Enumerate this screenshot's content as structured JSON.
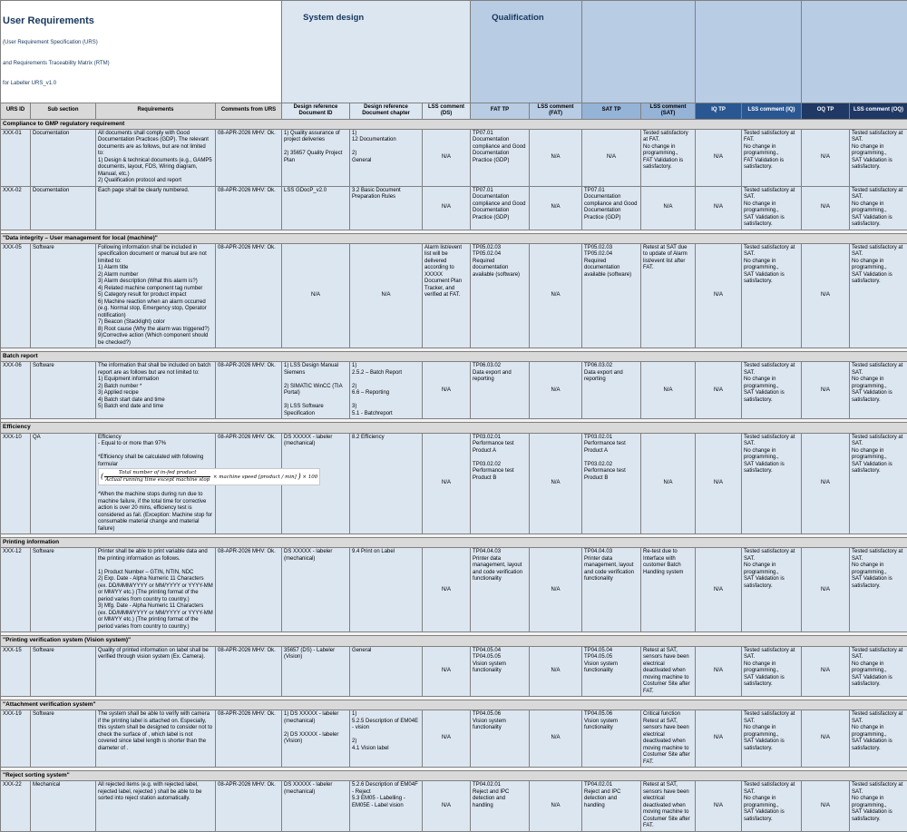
{
  "title": {
    "line1": "User Requirements",
    "line2": "(User Requirement Specification (URS)",
    "line3": "and Requirements Traceability Matrix (RTM)",
    "line4": "for Labeller URS_v1.0"
  },
  "bands": {
    "system_design": "System design",
    "qualification": "Qualification"
  },
  "colors": {
    "header_gray": "#d9d9d9",
    "system_design_blue": "#dce6f1",
    "qualification_blue": "#b8cce4",
    "sat_blue": "#95b3d7",
    "iq_navy": "#2a5792",
    "oq_navy": "#1f3864",
    "cell_bg": "#dce6f1",
    "title_navy": "#17375d"
  },
  "columns": [
    {
      "key": "urs-id",
      "field": "id",
      "label": "URS ID",
      "group": "urs"
    },
    {
      "key": "sub-section",
      "field": "sub",
      "label": "Sub section",
      "group": "urs"
    },
    {
      "key": "requirements",
      "field": "req",
      "label": "Requirements",
      "group": "urs"
    },
    {
      "key": "comments-from-urs",
      "field": "comments",
      "label": "Comments from URS",
      "group": "urs"
    },
    {
      "key": "design-doc-id",
      "field": "ds_id",
      "label": "Design reference\nDocument ID",
      "group": "ds"
    },
    {
      "key": "design-doc-chapter",
      "field": "ds_ch",
      "label": "Design reference\nDocument chapter",
      "group": "ds"
    },
    {
      "key": "lss-comment-ds",
      "field": "lss_ds",
      "label": "LSS comment (DS)",
      "group": "ds"
    },
    {
      "key": "fat-tp",
      "field": "fat",
      "label": "FAT TP",
      "group": "fat"
    },
    {
      "key": "lss-comment-fat",
      "field": "lss_fat",
      "label": "LSS comment (FAT)",
      "group": "fat"
    },
    {
      "key": "sat-tp",
      "field": "sat",
      "label": "SAT TP",
      "group": "sat"
    },
    {
      "key": "lss-comment-sat",
      "field": "lss_sat",
      "label": "LSS comment (SAT)",
      "group": "sat"
    },
    {
      "key": "iq-tp",
      "field": "iq",
      "label": "IQ TP",
      "group": "iq"
    },
    {
      "key": "lss-comment-iq",
      "field": "lss_iq",
      "label": "LSS comment (IQ)",
      "group": "iq"
    },
    {
      "key": "oq-tp",
      "field": "oq",
      "label": "OQ TP",
      "group": "oq"
    },
    {
      "key": "lss-comment-oq",
      "field": "lss_oq",
      "label": "LSS comment (OQ)",
      "group": "oq"
    }
  ],
  "formula": {
    "numerator": "Total number of in-fed product",
    "denominator": "Actual running time except machine stop",
    "mid": "× machine speed [product / min]",
    "tail": "× 100"
  },
  "sections": [
    {
      "header": "Compliance to GMP regulatory requirement",
      "rows": [
        {
          "id": "XXX-01",
          "sub": "Documentation",
          "req": "All documents shall comply with Good Documentation Practices (GDP). The relevant documents are as follows, but are not limited to:\n1) Design & technical documents (e.g., GAMP5 documents, layout, FDS, Wiring diagram, Manual, etc.)\n2) Qualification protocol and report",
          "comments": "08-APR-2026 MHV: Ok.",
          "ds_id": "1) Quality assurance of project deliveries\n\n2) 35657 Quality Project Plan",
          "ds_ch": "1)\n12 Documentation\n\n2)\nGeneral",
          "lss_ds": "N/A",
          "fat": "TP07.01\nDocumentation compliance and Good Documentation Practice (GDP)",
          "lss_fat": "N/A",
          "sat": "N/A",
          "lss_sat": "Tested satisfactory at FAT.\nNo change in programming.,\nFAT Validation is satisfactory.",
          "iq": "N/A",
          "lss_iq": "Tested satisfactory at FAT.\nNo change in programming.,\nFAT Validation is satisfactory.",
          "oq": "N/A",
          "lss_oq": "Tested satisfactory at SAT.\nNo change in programming.,\nSAT Validation is satisfactory."
        },
        {
          "id": "XXX-02",
          "sub": "Documentation",
          "req": "Each page shall be clearly numbered.",
          "comments": "08-APR-2026 MHV: Ok.",
          "ds_id": "LSS GDocP_v2.0",
          "ds_ch": "3.2 Basic Document Preparation Rules",
          "lss_ds": "N/A",
          "fat": "TP07.01\nDocumentation compliance and Good Documentation Practice (GDP)",
          "lss_fat": "N/A",
          "sat": "TP07.01\nDocumentation compliance and Good Documentation Practice (GDP)",
          "lss_sat": "N/A",
          "iq": "N/A",
          "lss_iq": "Tested satisfactory at SAT.\nNo change in programming.,\nSAT Validation is satisfactory.",
          "oq": "N/A",
          "lss_oq": "Tested satisfactory at SAT.\nNo change in programming.,\nSAT Validation is satisfactory."
        }
      ]
    },
    {
      "header": "\"Data integrity – User management for local (machine)\"",
      "rows": [
        {
          "id": "XXX-05",
          "sub": "Software",
          "req": "Following information shall be included in specification document or manual but are not limited to:\n1) Alarm title\n2) Alarm number\n3) Alarm description (What this alarm is?)\n4) Related machine component tag number\n5) Category result for product impact\n6) Machine reaction when an alarm occurred (e.g. Normal stop, Emergency stop, Operator notification)\n7) Beacon (Stacklight) color\n8) Root cause (Why the alarm was triggered?)\n9)Corrective action (Which component should be checked?)",
          "comments": "08-APR-2026 MHV: Ok.",
          "ds_id": "N/A",
          "ds_ch": "N/A",
          "lss_ds": "Alarm list/event list will be delivered according to XXXXX Document Plan Tracker, and verified at FAT.",
          "fat": "TP05.02.03\nTP05.02.04\nRequired documentation available (software)",
          "lss_fat": "N/A",
          "sat": "TP05.02.03\nTP05.02.04\nRequired documentation available (software)",
          "lss_sat": "Retest at SAT due to update of Alarm list/event list after FAT.",
          "iq": "N/A",
          "lss_iq": "Tested satisfactory at SAT.\nNo change in programming.,\nSAT Validation is satisfactory.",
          "oq": "N/A",
          "lss_oq": "Tested satisfactory at SAT.\nNo change in programming.,\nSAT Validation is satisfactory."
        }
      ]
    },
    {
      "header": "Batch report",
      "rows": [
        {
          "id": "XXX-06",
          "sub": "Software",
          "req": "The information that shall be included on batch report are as follows but are not limited to:\n1) Equipment information\n2) Batch number *\n3) Applied recipe\n4) Batch start date and time\n5) Batch end date and time",
          "comments": "08-APR-2026 MHV: Ok.",
          "ds_id": "1) LSS Design Manual Siemens\n\n2) SIMATIC WinCC (TIA Portal)\n\n3) LSS Software Specification",
          "ds_ch": "1)\n2.5.2 – Batch Report\n\n2)\n6.6 – Reporting\n\n3)\n5.1 - Batchreport",
          "lss_ds": "N/A",
          "fat": "TP06.03.02\nData export and reporting",
          "lss_fat": "N/A",
          "sat": "TP06.03.02\nData export and reporting",
          "lss_sat": "N/A",
          "iq": "N/A",
          "lss_iq": "Tested satisfactory at SAT.\nNo change in programming.,\nSAT Validation is satisfactory.",
          "oq": "N/A",
          "lss_oq": "Tested satisfactory at SAT.\nNo change in programming.,\nSAT Validation is satisfactory."
        }
      ]
    },
    {
      "header": "Efficiency",
      "rows": [
        {
          "id": "XXX-10",
          "sub": "QA",
          "req": "Efficiency\n- Equal to or more than 97%\n\n*Efficiency shall be calculated with following formular",
          "req2": "*When the machine stops during run due to machine failure, if the total time for corrective action is over 20 mins, efficiency test is considered as fail. (Exception: Machine stop for consumable material change and material failure)",
          "comments": "08-APR-2026 MHV: Ok.",
          "ds_id": "DS XXXXX - labeler (mechanical)",
          "ds_ch": "8.2 Efficiency",
          "lss_ds": "N/A",
          "fat": "TP03.02.01\nPerformance test Product A\n\nTP03.02.02\nPerformance test Product B",
          "lss_fat": "N/A",
          "sat": "TP03.02.01\nPerformance test Product A\n\nTP03.02.02\nPerformance test Product B",
          "lss_sat": "N/A",
          "iq": "N/A",
          "lss_iq": "Tested satisfactory at SAT.\nNo change in programming.,\nSAT Validation is satisfactory.",
          "oq": "N/A",
          "lss_oq": "Tested satisfactory at SAT.\nNo change in programming.,\nSAT Validation is satisfactory."
        }
      ]
    },
    {
      "header": "Printing information",
      "rows": [
        {
          "id": "XXX-12",
          "sub": "Software",
          "req": "Printer shall be able to print variable data and the printing information as follows.\n\n1) Product Number – GTIN, NTIN, NDC\n2) Exp. Date - Alpha Numeric 11 Characters (ex. DD/MMM/YYYY or MM/YYYY or YYYY-MM or MM/YY etc.) (The printing format of the period varies from country to country.)\n3) Mfg. Date - Alpha Numeric 11 Characters (ex. DD/MMM/YYYY or MM/YYYY or YYYY-MM or MM/YY etc.) (The printing format of the period varies from country to country.)",
          "comments": "08-APR-2026 MHV: Ok.",
          "ds_id": "DS XXXXX - labeler (mechanical)",
          "ds_ch": "9.4 Print on Label",
          "lss_ds": "N/A",
          "fat": "TP04.04.03\nPrinter data management, layout and code verification functionality",
          "lss_fat": "N/A",
          "sat": "TP04.04.03\nPrinter data management, layout and code verification functionality",
          "lss_sat": "Re-test due to Interface with customer Batch Handling system",
          "iq": "N/A",
          "lss_iq": "Tested satisfactory at SAT.\nNo change in programming.,\nSAT Validation is satisfactory.",
          "oq": "N/A",
          "lss_oq": "Tested satisfactory at SAT.\nNo change in programming.,\nSAT Validation is satisfactory."
        }
      ]
    },
    {
      "header": "\"Printing verification system (Vision system)\"",
      "rows": [
        {
          "id": "XXX-15",
          "sub": "Software",
          "req": "Quality of printed information on label shall be verified through vision system (Ex. Camera).",
          "comments": "08-APR-2026 MHV: Ok.",
          "ds_id": "35657 (DS) - Labeler (Vision)",
          "ds_ch": "General",
          "lss_ds": "N/A",
          "fat": "TP04.05.04\nTP04.05.05\nVision system functionality",
          "lss_fat": "N/A",
          "sat": "TP04.05.04\nTP04.05.05\nVision system functionality",
          "lss_sat": "Retest at SAT, sensors have been electrical deactivated when moving machine to Costumer Site after FAT.",
          "iq": "N/A",
          "lss_iq": "Tested satisfactory at SAT.\nNo change in programming.,\nSAT Validation is satisfactory.",
          "oq": "N/A",
          "lss_oq": "Tested satisfactory at SAT.\nNo change in programming.,\nSAT Validation is satisfactory."
        }
      ]
    },
    {
      "header": "\"Attachment verification system\"",
      "rows": [
        {
          "id": "XXX-19",
          "sub": "Software",
          "req": "The system shall be able to verify with camera if the printing label is attached on. Especially, this system shall be designed to consider not to check the surface of , which label is not covered since label length is shorter than the diameter of .",
          "comments": "08-APR-2026 MHV: Ok.",
          "ds_id": "1) DS XXXXX - labeler (mechanical)\n\n2) DS XXXXX - labeler (Vision)",
          "ds_ch": "1)\n5.2.5 Description of EM04E - vision\n\n2)\n4.1 Vision label",
          "lss_ds": "N/A",
          "fat": "TP04.05.06\nVision system functionality",
          "lss_fat": "N/A",
          "sat": "TP04.05.06\nVision system functionality",
          "lss_sat": "Critical function\nRetest at SAT, sensors have been electrical deactivated when moving machine to Costumer Site after FAT.",
          "iq": "N/A",
          "lss_iq": "Tested satisfactory at SAT.\nNo change in programming.,\nSAT Validation is satisfactory.",
          "oq": "N/A",
          "lss_oq": "Tested satisfactory at SAT.\nNo change in programming.,\nSAT Validation is satisfactory."
        }
      ]
    },
    {
      "header": "\"Reject sorting system\"",
      "rows": [
        {
          "id": "XXX-22",
          "sub": "Mechanical",
          "req": "All rejected items (e.g. with rejected label, rejected label, rejected ) shall be able to be sorted into reject station automatically.",
          "comments": "08-APR-2026 MHV: Ok.",
          "ds_id": "DS XXXXX - labeler (mechanical)",
          "ds_ch": "5.2.6 Description of EM04F - Reject\n5.3 EM05 - Labelling - EM05E - Label vision",
          "lss_ds": "N/A",
          "fat": "TP04.02.01\nReject and IPC detection and handling",
          "lss_fat": "N/A",
          "sat": "TP04.02.01\nReject and IPC detection and handling",
          "lss_sat": "Retest at SAT, sensors have been electrical deactivated when moving machine to Costumer Site after FAT.",
          "iq": "N/A",
          "lss_iq": "Tested satisfactory at SAT.\nNo change in programming.,\nSAT Validation is satisfactory.",
          "oq": "N/A",
          "lss_oq": "Tested satisfactory at SAT.\nNo change in programming.,\nSAT Validation is satisfactory."
        }
      ]
    }
  ]
}
